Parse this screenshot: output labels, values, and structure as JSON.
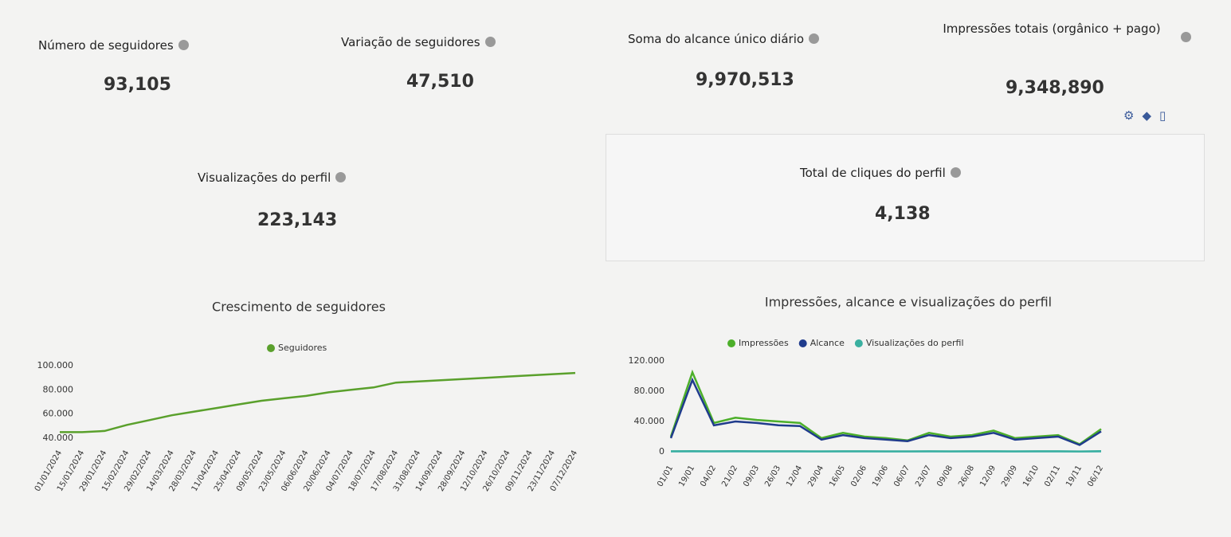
{
  "kpis": [
    {
      "label": "Número de seguidores",
      "value": "93,105"
    },
    {
      "label": "Variação de seguidores",
      "value": "47,510"
    },
    {
      "label": "Soma do alcance único diário",
      "value": "9,970,513"
    },
    {
      "label": "Impressões totais (orgânico + pago)",
      "value": "9,348,890"
    }
  ],
  "profile_kpis": [
    {
      "label": "Visualizações do perfil",
      "value": "223,143"
    },
    {
      "label": "Total de cliques do perfil",
      "value": "4,138"
    }
  ],
  "chart_data": [
    {
      "type": "line",
      "title": "Crescimento de seguidores",
      "categories": [
        "01/01/2024",
        "15/01/2024",
        "29/01/2024",
        "15/02/2024",
        "29/02/2024",
        "14/03/2024",
        "28/03/2024",
        "11/04/2024",
        "25/04/2024",
        "09/05/2024",
        "23/05/2024",
        "06/06/2024",
        "20/06/2024",
        "04/07/2024",
        "18/07/2024",
        "17/08/2024",
        "31/08/2024",
        "14/09/2024",
        "28/09/2024",
        "12/10/2024",
        "26/10/2024",
        "09/11/2024",
        "23/11/2024",
        "07/12/2024"
      ],
      "series": [
        {
          "name": "Seguidores",
          "color": "#5aa02c",
          "values": [
            45000,
            45000,
            46000,
            51000,
            55000,
            59000,
            62000,
            65000,
            68000,
            71000,
            73000,
            75000,
            78000,
            80000,
            82000,
            86000,
            87000,
            88000,
            89000,
            90000,
            91000,
            92000,
            93000,
            94000
          ]
        }
      ],
      "ylim": [
        40000,
        100000
      ],
      "yticks": [
        {
          "value": 40000,
          "label": "40.000"
        },
        {
          "value": 60000,
          "label": "60.000"
        },
        {
          "value": 80000,
          "label": "80.000"
        },
        {
          "value": 100000,
          "label": "100.000"
        }
      ]
    },
    {
      "type": "line",
      "title": "Impressões, alcance e visualizações do perfil",
      "categories": [
        "01/01",
        "19/01",
        "04/02",
        "21/02",
        "09/03",
        "26/03",
        "12/04",
        "29/04",
        "16/05",
        "02/06",
        "19/06",
        "06/07",
        "23/07",
        "09/08",
        "26/08",
        "12/09",
        "29/09",
        "16/10",
        "02/11",
        "19/11",
        "06/12"
      ],
      "series": [
        {
          "name": "Impressões",
          "color": "#4caf2a",
          "values": [
            20000,
            105000,
            38000,
            45000,
            42000,
            40000,
            38000,
            18000,
            25000,
            20000,
            18000,
            15000,
            25000,
            20000,
            22000,
            28000,
            18000,
            20000,
            22000,
            10000,
            30000
          ]
        },
        {
          "name": "Alcance",
          "color": "#1f3b8c",
          "values": [
            18000,
            95000,
            35000,
            40000,
            38000,
            35000,
            34000,
            16000,
            22000,
            18000,
            16000,
            14000,
            22000,
            18000,
            20000,
            25000,
            16000,
            18000,
            20000,
            9000,
            27000
          ]
        },
        {
          "name": "Visualizações do perfil",
          "color": "#3ab0a0",
          "values": [
            600,
            700,
            650,
            700,
            650,
            600,
            650,
            550,
            600,
            600,
            550,
            500,
            600,
            550,
            600,
            650,
            550,
            600,
            600,
            450,
            700
          ]
        }
      ],
      "ylim": [
        0,
        120000
      ],
      "yticks": [
        0,
        {
          "value": 40000,
          "label": "40.000"
        },
        {
          "value": 80000,
          "label": "80.000"
        },
        {
          "value": 120000,
          "label": "120.000"
        }
      ]
    }
  ]
}
